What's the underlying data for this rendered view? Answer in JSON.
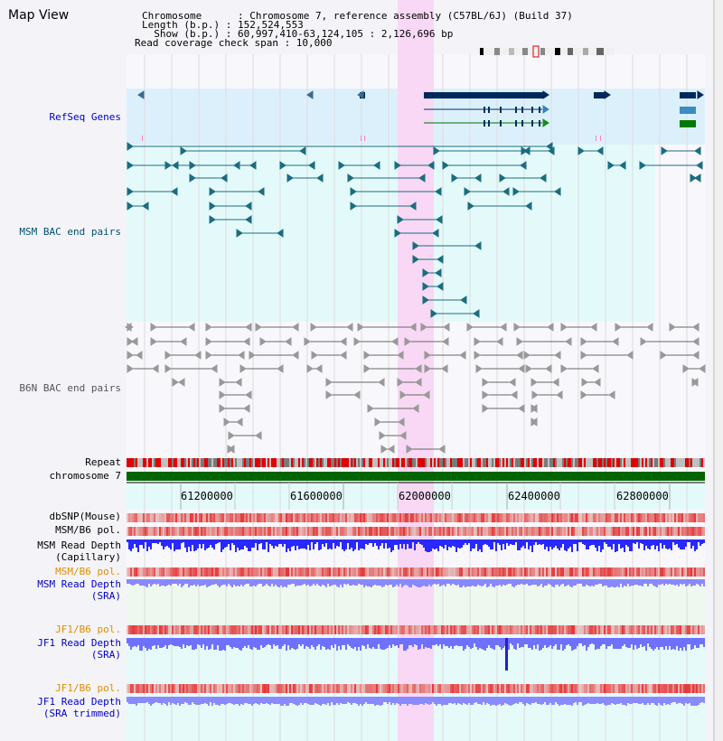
{
  "title": "Map View",
  "info": {
    "chromosome_line": "Chromosome      : Chromosome 7, reference assembly (C57BL/6J) (Build 37)",
    "length_line": "Length (b.p.) : 152,524,553",
    "show_line": "  Show (b.p.) : 60,997,410-63,124,105 : 2,126,696 bp",
    "coverage_line": "Read coverage check span : 10,000"
  },
  "tracks": {
    "refseq": "RefSeq Genes",
    "msm_bac": "MSM BAC end pairs",
    "b6n_bac": "B6N BAC end pairs",
    "repeat": "Repeat",
    "chromosome": "chromosome 7",
    "dbsnp": "dbSNP(Mouse)",
    "msm_b6_pol_1": "MSM/B6 pol.",
    "msm_read_depth_cap_1": "MSM Read Depth",
    "msm_read_depth_cap_2": "(Capillary)",
    "msm_b6_pol_2": "MSM/B6 pol.",
    "msm_read_depth_sra_1": "MSM Read Depth",
    "msm_read_depth_sra_2": "(SRA)",
    "jf1_b6_pol_1": "JF1/B6 pol.",
    "jf1_read_depth_1": "JF1 Read Depth",
    "jf1_read_depth_2": "(SRA)",
    "jf1_b6_pol_2": "JF1/B6 pol.",
    "jf1_read_depth_trim_1": "JF1 Read Depth",
    "jf1_read_depth_trim_2": "(SRA trimmed)"
  },
  "ruler": {
    "ticks": [
      "61200000",
      "61600000",
      "62000000",
      "62400000",
      "62800000"
    ]
  },
  "colors": {
    "highlight": "#f8d8f4",
    "refseq_bg": "#dcf0fc",
    "msm_bg": "#e4fafa",
    "label_blue": "#0000c0",
    "label_teal": "#005070",
    "label_orange": "#e08c00",
    "chromosome_green": "#006400"
  }
}
